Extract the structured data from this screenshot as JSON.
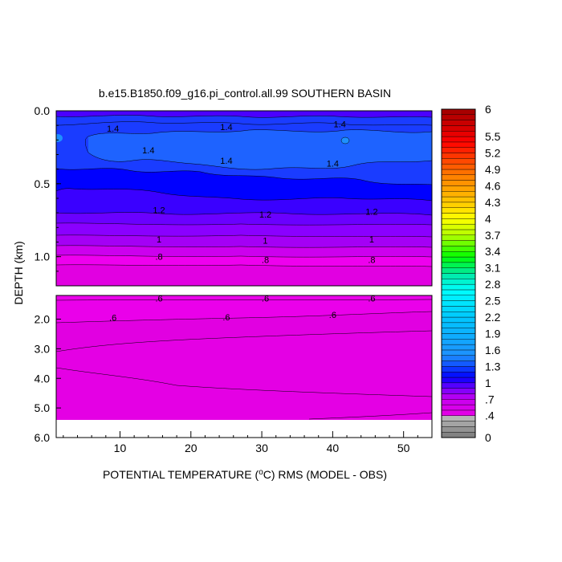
{
  "chart_data": {
    "type": "contour",
    "title": "b.e15.B1850.f09_g16.pi_control.all.99 SOUTHERN BASIN",
    "xlabel_prefix": "POTENTIAL TEMPERATURE (",
    "xlabel_super": "o",
    "xlabel_suffix": "C) RMS (MODEL - OBS)",
    "ylabel": "DEPTH (km)",
    "xlim": [
      1,
      54
    ],
    "x_ticks": [
      10,
      20,
      30,
      40,
      50
    ],
    "x_tick_labels": [
      "10",
      "20",
      "30",
      "40",
      "50"
    ],
    "upper_panel": {
      "ylim": [
        0.0,
        1.2
      ],
      "y_tick_labels": [
        "0.0",
        "0.5",
        "1.0"
      ],
      "y_ticks": [
        0.0,
        0.5,
        1.0
      ]
    },
    "lower_panel": {
      "ylim": [
        1.2,
        6.0
      ],
      "y_tick_labels": [
        "2.0",
        "3.0",
        "4.0",
        "5.0",
        "6.0"
      ],
      "y_ticks": [
        2.0,
        3.0,
        4.0,
        5.0,
        6.0
      ],
      "data_bottom_depth": 5.35
    },
    "contour_labels": [
      {
        "panel": "upper",
        "x": 9,
        "y": 0.12,
        "text": "1.4"
      },
      {
        "panel": "upper",
        "x": 25,
        "y": 0.11,
        "text": "1.4"
      },
      {
        "panel": "upper",
        "x": 41,
        "y": 0.09,
        "text": "1.4"
      },
      {
        "panel": "upper",
        "x": 14,
        "y": 0.27,
        "text": "1.4"
      },
      {
        "panel": "upper",
        "x": 25,
        "y": 0.34,
        "text": "1.4"
      },
      {
        "panel": "upper",
        "x": 40,
        "y": 0.36,
        "text": "1.4"
      },
      {
        "panel": "upper",
        "x": 15.5,
        "y": 0.68,
        "text": "1.2"
      },
      {
        "panel": "upper",
        "x": 30.5,
        "y": 0.71,
        "text": "1.2"
      },
      {
        "panel": "upper",
        "x": 45.5,
        "y": 0.69,
        "text": "1.2"
      },
      {
        "panel": "upper",
        "x": 15.5,
        "y": 0.88,
        "text": "1"
      },
      {
        "panel": "upper",
        "x": 30.5,
        "y": 0.89,
        "text": "1"
      },
      {
        "panel": "upper",
        "x": 45.5,
        "y": 0.88,
        "text": "1"
      },
      {
        "panel": "upper",
        "x": 15.5,
        "y": 1.0,
        "text": ".8"
      },
      {
        "panel": "upper",
        "x": 30.5,
        "y": 1.02,
        "text": ".8"
      },
      {
        "panel": "upper",
        "x": 45.5,
        "y": 1.02,
        "text": ".8"
      },
      {
        "panel": "lower",
        "x": 15.5,
        "y": 1.3,
        "text": ".6"
      },
      {
        "panel": "lower",
        "x": 30.5,
        "y": 1.3,
        "text": ".6"
      },
      {
        "panel": "lower",
        "x": 45.5,
        "y": 1.3,
        "text": ".6"
      },
      {
        "panel": "lower",
        "x": 9,
        "y": 1.95,
        "text": ".6"
      },
      {
        "panel": "lower",
        "x": 25,
        "y": 1.93,
        "text": ".6"
      },
      {
        "panel": "lower",
        "x": 40,
        "y": 1.85,
        "text": ".6"
      }
    ],
    "colorbar": {
      "levels": [
        0,
        0.1,
        0.2,
        0.3,
        0.4,
        0.5,
        0.6,
        0.7,
        0.8,
        0.9,
        1.0,
        1.1,
        1.2,
        1.3,
        1.4,
        1.5,
        1.6,
        1.7,
        1.8,
        1.9,
        2.0,
        2.1,
        2.2,
        2.3,
        2.4,
        2.5,
        2.6,
        2.7,
        2.8,
        2.9,
        3.0,
        3.1,
        3.2,
        3.3,
        3.4,
        3.5,
        3.6,
        3.7,
        3.8,
        3.9,
        4.0,
        4.1,
        4.2,
        4.3,
        4.4,
        4.5,
        4.6,
        4.7,
        4.8,
        4.9,
        5.0,
        5.1,
        5.2,
        5.3,
        5.4,
        5.5,
        5.6,
        5.7,
        5.8,
        5.9,
        6.0
      ],
      "tick_values": [
        0,
        0.4,
        0.7,
        1.0,
        1.3,
        1.6,
        1.9,
        2.2,
        2.5,
        2.8,
        3.1,
        3.4,
        3.7,
        4.0,
        4.3,
        4.6,
        4.9,
        5.2,
        5.5,
        6.0
      ],
      "tick_labels": [
        "0",
        ".4",
        ".7",
        "1",
        "1.3",
        "1.6",
        "1.9",
        "2.2",
        "2.5",
        "2.8",
        "3.1",
        "3.4",
        "3.7",
        "4",
        "4.3",
        "4.6",
        "4.9",
        "5.2",
        "5.5",
        "6"
      ]
    },
    "colors": {
      "gray_low": "#8c8c8c",
      "magenta": "#e100e1",
      "purple": "#7b00ff",
      "blue": "#0000ff",
      "light_blue": "#1e90ff",
      "cyan": "#00ffff",
      "green": "#00ff00",
      "yellow": "#ffff00",
      "orange": "#ff8c00",
      "red": "#ff0000",
      "dark_red": "#a00000"
    }
  }
}
